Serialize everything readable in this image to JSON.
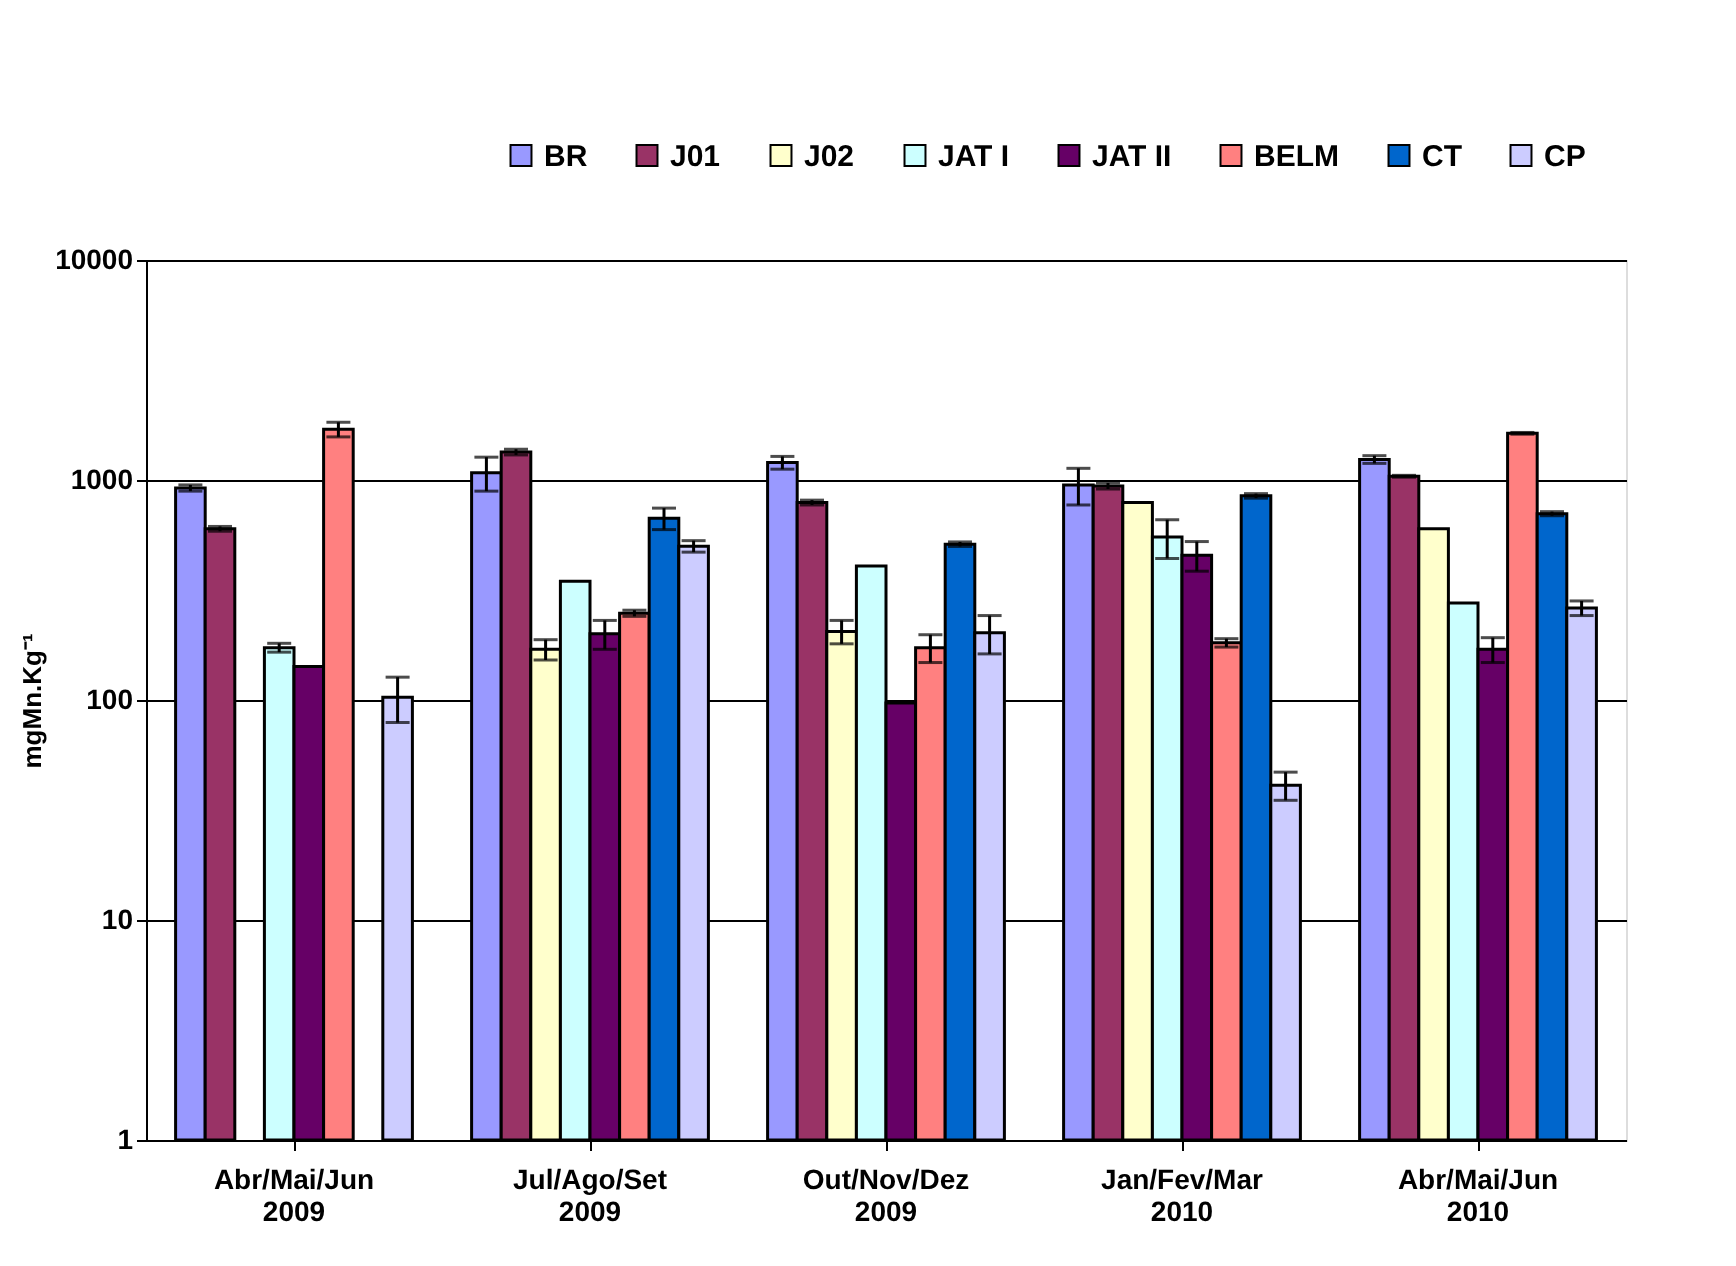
{
  "chart_data": {
    "type": "bar",
    "ylabel": "mgMn.Kg⁻¹",
    "categories": [
      "Abr/Mai/Jun\n2009",
      "Jul/Ago/Set\n2009",
      "Out/Nov/Dez\n2009",
      "Jan/Fev/Mar\n2010",
      "Abr/Mai/Jun\n2010"
    ],
    "series": [
      {
        "name": "BR",
        "color": "#9999ff",
        "values": [
          920,
          1080,
          1200,
          950,
          1240
        ],
        "errors": [
          30,
          190,
          80,
          180,
          50
        ]
      },
      {
        "name": "J01",
        "color": "#993366",
        "values": [
          600,
          1340,
          790,
          940,
          1040
        ],
        "errors": [
          15,
          40,
          20,
          30,
          10
        ]
      },
      {
        "name": "J02",
        "color": "#ffffcc",
        "values": [
          null,
          170,
          205,
          790,
          600
        ],
        "errors": [
          null,
          18,
          25,
          null,
          null
        ]
      },
      {
        "name": "JAT I",
        "color": "#ccffff",
        "values": [
          173,
          347,
          407,
          550,
          276
        ],
        "errors": [
          8,
          null,
          null,
          110,
          null
        ]
      },
      {
        "name": "JAT II",
        "color": "#660066",
        "values": [
          142,
          200,
          97,
          455,
          170
        ],
        "errors": [
          null,
          30,
          null,
          70,
          22
        ]
      },
      {
        "name": "BELM",
        "color": "#ff8080",
        "values": [
          1700,
          248,
          173,
          182,
          1630
        ],
        "errors": [
          130,
          8,
          25,
          8,
          15
        ]
      },
      {
        "name": "CT",
        "color": "#0066cc",
        "values": [
          null,
          670,
          511,
          847,
          703
        ],
        "errors": [
          null,
          75,
          12,
          20,
          15
        ]
      },
      {
        "name": "CP",
        "color": "#ccccff",
        "values": [
          103,
          500,
          202,
          41,
          262
        ],
        "errors": [
          24,
          30,
          40,
          6,
          20
        ]
      }
    ],
    "log": "y",
    "ylim": [
      1,
      10000
    ],
    "yticks": [
      1,
      10,
      100,
      1000,
      10000
    ],
    "grid": "y",
    "legend": "top right"
  }
}
